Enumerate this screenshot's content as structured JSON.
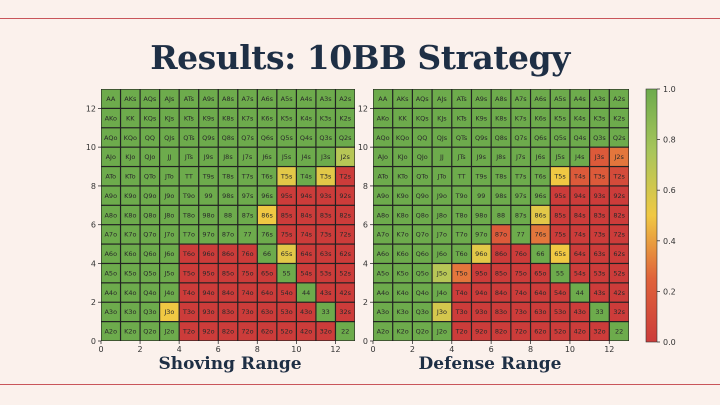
{
  "title": "Results: 10BB Strategy",
  "captions": {
    "left": "Shoving Range",
    "right": "Defense Range"
  },
  "colors": {
    "background": "#fbf1ec",
    "title": "#1e2f45",
    "rule": "#c9555a"
  },
  "chart_data": [
    {
      "type": "heatmap",
      "name": "Shoving Range",
      "xticks": [
        "0",
        "2",
        "4",
        "6",
        "8",
        "10",
        "12"
      ],
      "yticks": [
        "0",
        "2",
        "4",
        "6",
        "8",
        "10",
        "12"
      ],
      "xlim": [
        0,
        13
      ],
      "ylim": [
        0,
        13
      ],
      "labels": [
        [
          "AA",
          "AKs",
          "AQs",
          "AJs",
          "ATs",
          "A9s",
          "A8s",
          "A7s",
          "A6s",
          "A5s",
          "A4s",
          "A3s",
          "A2s"
        ],
        [
          "AKo",
          "KK",
          "KQs",
          "KJs",
          "KTs",
          "K9s",
          "K8s",
          "K7s",
          "K6s",
          "K5s",
          "K4s",
          "K3s",
          "K2s"
        ],
        [
          "AQo",
          "KQo",
          "QQ",
          "QJs",
          "QTs",
          "Q9s",
          "Q8s",
          "Q7s",
          "Q6s",
          "Q5s",
          "Q4s",
          "Q3s",
          "Q2s"
        ],
        [
          "AJo",
          "KJo",
          "QJo",
          "JJ",
          "JTs",
          "J9s",
          "J8s",
          "J7s",
          "J6s",
          "J5s",
          "J4s",
          "J3s",
          "J2s"
        ],
        [
          "ATo",
          "KTo",
          "QTo",
          "JTo",
          "TT",
          "T9s",
          "T8s",
          "T7s",
          "T6s",
          "T5s",
          "T4s",
          "T3s",
          "T2s"
        ],
        [
          "A9o",
          "K9o",
          "Q9o",
          "J9o",
          "T9o",
          "99",
          "98s",
          "97s",
          "96s",
          "95s",
          "94s",
          "93s",
          "92s"
        ],
        [
          "A8o",
          "K8o",
          "Q8o",
          "J8o",
          "T8o",
          "98o",
          "88",
          "87s",
          "86s",
          "85s",
          "84s",
          "83s",
          "82s"
        ],
        [
          "A7o",
          "K7o",
          "Q7o",
          "J7o",
          "T7o",
          "97o",
          "87o",
          "77",
          "76s",
          "75s",
          "74s",
          "73s",
          "72s"
        ],
        [
          "A6o",
          "K6o",
          "Q6o",
          "J6o",
          "T6o",
          "96o",
          "86o",
          "76o",
          "66",
          "65s",
          "64s",
          "63s",
          "62s"
        ],
        [
          "A5o",
          "K5o",
          "Q5o",
          "J5o",
          "T5o",
          "95o",
          "85o",
          "75o",
          "65o",
          "55",
          "54s",
          "53s",
          "52s"
        ],
        [
          "A4o",
          "K4o",
          "Q4o",
          "J4o",
          "T4o",
          "94o",
          "84o",
          "74o",
          "64o",
          "54o",
          "44",
          "43s",
          "42s"
        ],
        [
          "A3o",
          "K3o",
          "Q3o",
          "J3o",
          "T3o",
          "93o",
          "83o",
          "73o",
          "63o",
          "53o",
          "43o",
          "33",
          "32s"
        ],
        [
          "A2o",
          "K2o",
          "Q2o",
          "J2o",
          "T2o",
          "92o",
          "82o",
          "72o",
          "62o",
          "52o",
          "42o",
          "32o",
          "22"
        ]
      ],
      "values": [
        [
          1,
          1,
          1,
          1,
          1,
          1,
          1,
          1,
          1,
          1,
          1,
          1,
          1
        ],
        [
          1,
          1,
          1,
          1,
          1,
          1,
          1,
          1,
          1,
          1,
          1,
          1,
          1
        ],
        [
          1,
          1,
          1,
          1,
          1,
          1,
          1,
          1,
          1,
          1,
          1,
          1,
          1
        ],
        [
          1,
          1,
          1,
          1,
          1,
          1,
          1,
          1,
          1,
          1,
          1,
          1,
          0.7
        ],
        [
          1,
          1,
          1,
          1,
          1,
          1,
          1,
          1,
          1,
          0.55,
          1,
          0.55,
          0
        ],
        [
          1,
          1,
          1,
          1,
          1,
          1,
          1,
          1,
          1,
          0,
          0,
          0,
          0
        ],
        [
          1,
          1,
          1,
          1,
          1,
          1,
          1,
          1,
          0.5,
          0,
          0,
          0,
          0
        ],
        [
          1,
          1,
          1,
          1,
          1,
          1,
          1,
          1,
          1,
          0,
          0,
          0,
          0
        ],
        [
          1,
          1,
          1,
          1,
          0,
          0,
          0,
          0,
          1,
          0.55,
          0,
          0,
          0
        ],
        [
          1,
          1,
          1,
          1,
          0,
          0,
          0,
          0,
          0,
          1,
          0,
          0,
          0
        ],
        [
          1,
          1,
          1,
          1,
          0,
          0,
          0,
          0,
          0,
          0,
          1,
          0,
          0
        ],
        [
          1,
          1,
          1,
          0.5,
          0,
          0,
          0,
          0,
          0,
          0,
          0,
          1,
          0
        ],
        [
          1,
          1,
          1,
          1,
          0,
          0,
          0,
          0,
          0,
          0,
          0,
          0,
          1
        ]
      ]
    },
    {
      "type": "heatmap",
      "name": "Defense Range",
      "xticks": [
        "0",
        "2",
        "4",
        "6",
        "8",
        "10",
        "12"
      ],
      "yticks": [
        "0",
        "2",
        "4",
        "6",
        "8",
        "10",
        "12"
      ],
      "xlim": [
        0,
        13
      ],
      "ylim": [
        0,
        13
      ],
      "colorbar": {
        "min": 0.0,
        "max": 1.0,
        "ticks": [
          "0.0",
          "0.2",
          "0.4",
          "0.6",
          "0.8",
          "1.0"
        ]
      },
      "labels": [
        [
          "AA",
          "AKs",
          "AQs",
          "AJs",
          "ATs",
          "A9s",
          "A8s",
          "A7s",
          "A6s",
          "A5s",
          "A4s",
          "A3s",
          "A2s"
        ],
        [
          "AKo",
          "KK",
          "KQs",
          "KJs",
          "KTs",
          "K9s",
          "K8s",
          "K7s",
          "K6s",
          "K5s",
          "K4s",
          "K3s",
          "K2s"
        ],
        [
          "AQo",
          "KQo",
          "QQ",
          "QJs",
          "QTs",
          "Q9s",
          "Q8s",
          "Q7s",
          "Q6s",
          "Q5s",
          "Q4s",
          "Q3s",
          "Q2s"
        ],
        [
          "AJo",
          "KJo",
          "QJo",
          "JJ",
          "JTs",
          "J9s",
          "J8s",
          "J7s",
          "J6s",
          "J5s",
          "J4s",
          "J3s",
          "J2s"
        ],
        [
          "ATo",
          "KTo",
          "QTo",
          "JTo",
          "TT",
          "T9s",
          "T8s",
          "T7s",
          "T6s",
          "T5s",
          "T4s",
          "T3s",
          "T2s"
        ],
        [
          "A9o",
          "K9o",
          "Q9o",
          "J9o",
          "T9o",
          "99",
          "98s",
          "97s",
          "96s",
          "95s",
          "94s",
          "93s",
          "92s"
        ],
        [
          "A8o",
          "K8o",
          "Q8o",
          "J8o",
          "T8o",
          "98o",
          "88",
          "87s",
          "86s",
          "85s",
          "84s",
          "83s",
          "82s"
        ],
        [
          "A7o",
          "K7o",
          "Q7o",
          "J7o",
          "T7o",
          "97o",
          "87o",
          "77",
          "76s",
          "75s",
          "74s",
          "73s",
          "72s"
        ],
        [
          "A6o",
          "K6o",
          "Q6o",
          "J6o",
          "T6o",
          "96o",
          "86o",
          "76o",
          "66",
          "65s",
          "64s",
          "63s",
          "62s"
        ],
        [
          "A5o",
          "K5o",
          "Q5o",
          "J5o",
          "T5o",
          "95o",
          "85o",
          "75o",
          "65o",
          "55",
          "54s",
          "53s",
          "52s"
        ],
        [
          "A4o",
          "K4o",
          "Q4o",
          "J4o",
          "T4o",
          "94o",
          "84o",
          "74o",
          "64o",
          "54o",
          "44",
          "43s",
          "42s"
        ],
        [
          "A3o",
          "K3o",
          "Q3o",
          "J3o",
          "T3o",
          "93o",
          "83o",
          "73o",
          "63o",
          "53o",
          "43o",
          "33",
          "32s"
        ],
        [
          "A2o",
          "K2o",
          "Q2o",
          "J2o",
          "T2o",
          "92o",
          "82o",
          "72o",
          "62o",
          "52o",
          "42o",
          "32o",
          "22"
        ]
      ],
      "values": [
        [
          1,
          1,
          1,
          1,
          1,
          1,
          1,
          1,
          1,
          1,
          1,
          1,
          1
        ],
        [
          1,
          1,
          1,
          1,
          1,
          1,
          1,
          1,
          1,
          1,
          1,
          1,
          1
        ],
        [
          1,
          1,
          1,
          1,
          1,
          1,
          1,
          1,
          1,
          1,
          1,
          1,
          1
        ],
        [
          1,
          1,
          1,
          1,
          1,
          1,
          1,
          1,
          1,
          1,
          1,
          0.2,
          0.3
        ],
        [
          1,
          1,
          1,
          1,
          1,
          1,
          1,
          1,
          1,
          0.5,
          0.2,
          0.2,
          0.1
        ],
        [
          1,
          1,
          1,
          1,
          1,
          1,
          1,
          1,
          1,
          0,
          0,
          0,
          0
        ],
        [
          1,
          1,
          1,
          1,
          1,
          1,
          1,
          1,
          0.55,
          0,
          0,
          0,
          0
        ],
        [
          1,
          1,
          1,
          1,
          1,
          1,
          0.2,
          1,
          0.3,
          0,
          0,
          0,
          0
        ],
        [
          1,
          1,
          1,
          1,
          1,
          0.55,
          0,
          0,
          1,
          0.5,
          0,
          0,
          0
        ],
        [
          1,
          1,
          1,
          0.7,
          0.3,
          0,
          0,
          0,
          0,
          1,
          0,
          0,
          0
        ],
        [
          1,
          1,
          1,
          1,
          0,
          0,
          0,
          0,
          0,
          0,
          1,
          0,
          0
        ],
        [
          1,
          1,
          1,
          0.6,
          0,
          0,
          0,
          0,
          0,
          0,
          0,
          1,
          0
        ],
        [
          1,
          1,
          1,
          1,
          0,
          0,
          0,
          0,
          0,
          0,
          0,
          0,
          1
        ]
      ]
    }
  ]
}
